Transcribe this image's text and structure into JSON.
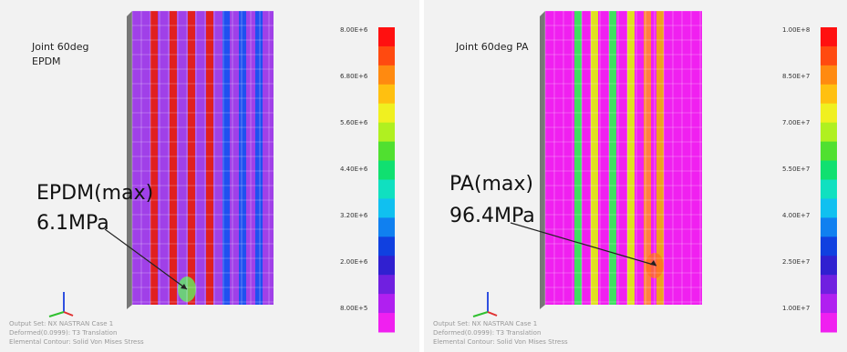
{
  "panels": [
    {
      "title": [
        "Joint 60deg",
        "EPDM"
      ],
      "annotation": [
        "EPDM(max)",
        "6.1MPa"
      ],
      "colorbar_labels": [
        "8.00E+6",
        "6.80E+6",
        "5.60E+6",
        "4.40E+6",
        "3.20E+6",
        "2.00E+6",
        "8.00E+5"
      ],
      "footer": [
        "Output Set: NX NASTRAN Case 1",
        "Deformed(0.0999): T3 Translation",
        "Elemental Contour: Solid Von Mises Stress"
      ]
    },
    {
      "title": [
        "Joint 60deg PA"
      ],
      "annotation": [
        "PA(max)",
        "96.4MPa"
      ],
      "colorbar_labels": [
        "1.00E+8",
        "8.50E+7",
        "7.00E+7",
        "5.50E+7",
        "4.00E+7",
        "2.50E+7",
        "1.00E+7"
      ],
      "footer": [
        "Output Set: NX NASTRAN Case 1",
        "Deformed(0.0999): T3 Translation",
        "Elemental Contour: Solid Von Mises Stress"
      ]
    }
  ]
}
